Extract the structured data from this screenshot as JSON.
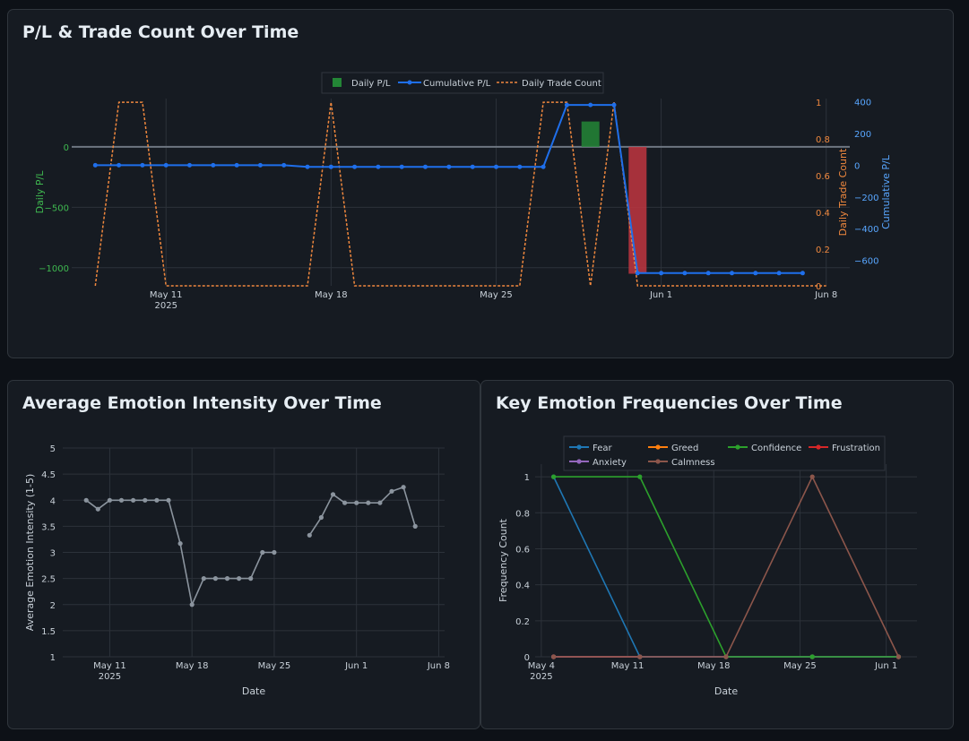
{
  "colors": {
    "grid": "#2c323a",
    "tick": "#c9d1d9",
    "profit": "#238636",
    "loss": "#c03540",
    "cumulative": "#1f6feb",
    "trades": "#f0883e",
    "emotion": "#8b949e",
    "zero": "#6e7681",
    "pl_axis": "#3fb950",
    "trade_axis": "#f0883e",
    "cum_axis": "#58a6ff"
  },
  "pl_chart": {
    "title": "P/L & Trade Count Over Time"
  },
  "emotion_chart": {
    "title": "Average Emotion Intensity Over Time"
  },
  "freq_chart": {
    "title": "Key Emotion Frequencies Over Time"
  },
  "chart_data": [
    {
      "type": "bar+line",
      "title": "P/L & Trade Count Over Time",
      "x_ticks": [
        {
          "day": 11,
          "label": "May 11",
          "sub": "2025"
        },
        {
          "day": 18,
          "label": "May 18"
        },
        {
          "day": 25,
          "label": "May 25"
        },
        {
          "day": 32,
          "label": "Jun 1"
        },
        {
          "day": 39,
          "label": "Jun 8"
        }
      ],
      "xlim": [
        7,
        40
      ],
      "daily_pl": {
        "name": "Daily P/L",
        "ylabel": "Daily P/L",
        "ylim": [
          -1150,
          400
        ],
        "ticks": [
          0,
          -500,
          -1000
        ],
        "tick_labels": [
          "0",
          "−500",
          "−1000"
        ],
        "bars": [
          {
            "day": 29,
            "value": 210
          },
          {
            "day": 31,
            "value": -1050
          }
        ]
      },
      "trade_count": {
        "name": "Daily Trade Count",
        "ylabel": "Daily Trade Count",
        "ylim": [
          0,
          1.02
        ],
        "ticks": [
          0,
          0.2,
          0.4,
          0.6,
          0.8,
          1
        ],
        "tick_labels": [
          "0",
          "0.2",
          "0.4",
          "0.6",
          "0.8",
          "1"
        ],
        "x": [
          8,
          9,
          10,
          11,
          12,
          13,
          14,
          15,
          16,
          17,
          18,
          19,
          20,
          21,
          22,
          23,
          24,
          25,
          26,
          27,
          28,
          29,
          30,
          31,
          32,
          33,
          34,
          35,
          36,
          37,
          38,
          39
        ],
        "y": [
          0,
          1,
          1,
          0,
          0,
          0,
          0,
          0,
          0,
          0,
          1,
          0,
          0,
          0,
          0,
          0,
          0,
          0,
          0,
          1,
          1,
          0,
          1,
          0,
          0,
          0,
          0,
          0,
          0,
          0,
          0,
          0
        ]
      },
      "cumulative": {
        "name": "Cumulative P/L",
        "ylabel": "Cumulative P/L",
        "ylim": [
          -760,
          420
        ],
        "ticks": [
          400,
          200,
          0,
          -200,
          -400,
          -600
        ],
        "tick_labels": [
          "400",
          "200",
          "0",
          "−200",
          "−400",
          "−600"
        ],
        "x": [
          8,
          9,
          10,
          11,
          12,
          13,
          14,
          15,
          16,
          17,
          18,
          19,
          20,
          21,
          22,
          23,
          24,
          25,
          26,
          27,
          28,
          29,
          30,
          31,
          32,
          33,
          34,
          35,
          36,
          37,
          38
        ],
        "y": [
          0,
          0,
          0,
          0,
          0,
          0,
          0,
          0,
          0,
          -10,
          -10,
          -10,
          -10,
          -10,
          -10,
          -10,
          -10,
          -10,
          -10,
          -10,
          380,
          380,
          380,
          -680,
          -680,
          -680,
          -680,
          -680,
          -680,
          -680,
          -680
        ]
      },
      "legend": [
        "Daily P/L",
        "Cumulative P/L",
        "Daily Trade Count"
      ]
    },
    {
      "type": "line",
      "title": "Average Emotion Intensity Over Time",
      "xlabel": "Date",
      "ylabel": "Average Emotion Intensity (1-5)",
      "xlim": [
        7,
        39.5
      ],
      "ylim": [
        1,
        5
      ],
      "y_ticks": [
        1,
        1.5,
        2,
        2.5,
        3,
        3.5,
        4,
        4.5,
        5
      ],
      "y_tick_labels": [
        "1",
        "1.5",
        "2",
        "2.5",
        "3",
        "3.5",
        "4",
        "4.5",
        "5"
      ],
      "x_ticks": [
        {
          "day": 11,
          "label": "May 11",
          "sub": "2025"
        },
        {
          "day": 18,
          "label": "May 18"
        },
        {
          "day": 25,
          "label": "May 25"
        },
        {
          "day": 32,
          "label": "Jun 1"
        },
        {
          "day": 39,
          "label": "Jun 8"
        }
      ],
      "segments": [
        {
          "x": [
            9,
            10,
            11,
            12,
            13,
            14,
            15,
            16,
            17,
            18,
            19,
            20,
            21,
            22,
            23,
            24,
            25
          ],
          "y": [
            4,
            3.83,
            4,
            4,
            4,
            4,
            4,
            4,
            3.17,
            2,
            2.5,
            2.5,
            2.5,
            2.5,
            2.5,
            3,
            3
          ]
        },
        {
          "x": [
            28,
            29,
            30,
            31,
            32,
            33,
            34,
            35,
            36,
            37
          ],
          "y": [
            3.33,
            3.67,
            4.11,
            3.95,
            3.95,
            3.95,
            3.95,
            4.17,
            4.25,
            3.5
          ]
        }
      ]
    },
    {
      "type": "line",
      "title": "Key Emotion Frequencies Over Time",
      "xlabel": "Date",
      "ylabel": "Frequency Count",
      "xlim": [
        3.5,
        34.5
      ],
      "ylim": [
        0,
        1.07
      ],
      "y_ticks": [
        0,
        0.2,
        0.4,
        0.6,
        0.8,
        1
      ],
      "y_tick_labels": [
        "0",
        "0.2",
        "0.4",
        "0.6",
        "0.8",
        "1"
      ],
      "x_ticks": [
        {
          "day": 4,
          "label": "May 4",
          "sub": "2025"
        },
        {
          "day": 11,
          "label": "May 11"
        },
        {
          "day": 18,
          "label": "May 18"
        },
        {
          "day": 25,
          "label": "May 25"
        },
        {
          "day": 32,
          "label": "Jun 1"
        }
      ],
      "x": [
        5,
        12,
        19,
        26,
        33
      ],
      "series": [
        {
          "name": "Fear",
          "color": "#1f77b4",
          "values": [
            1,
            0,
            0,
            0,
            0
          ]
        },
        {
          "name": "Greed",
          "color": "#ff7f0e",
          "values": [
            0,
            0,
            0,
            0,
            0
          ]
        },
        {
          "name": "Confidence",
          "color": "#2ca02c",
          "values": [
            1,
            1,
            0,
            0,
            0
          ]
        },
        {
          "name": "Frustration",
          "color": "#d62728",
          "values": [
            0,
            0,
            0,
            0,
            0
          ]
        },
        {
          "name": "Anxiety",
          "color": "#9467bd",
          "values": [
            0,
            0,
            0,
            0,
            0
          ]
        },
        {
          "name": "Calmness",
          "color": "#8c564b",
          "values": [
            0,
            0,
            0,
            1,
            0
          ]
        }
      ],
      "draw_order": [
        "Greed",
        "Frustration",
        "Anxiety",
        "Fear",
        "Confidence",
        "Calmness"
      ]
    }
  ]
}
